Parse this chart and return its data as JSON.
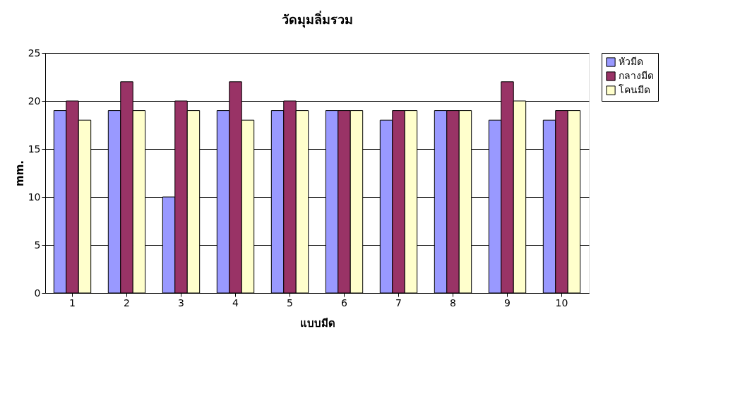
{
  "chart_data": {
    "type": "bar",
    "title": "วัดมุมลิ่มรวม",
    "xlabel": "แบบมีด",
    "ylabel": "mm.",
    "categories": [
      "1",
      "2",
      "3",
      "4",
      "5",
      "6",
      "7",
      "8",
      "9",
      "10"
    ],
    "series": [
      {
        "name": "หัวมีด",
        "color": "#9999ff",
        "values": [
          19,
          19,
          10,
          19,
          19,
          19,
          18,
          19,
          18,
          18
        ]
      },
      {
        "name": "กลางมีด",
        "color": "#993366",
        "values": [
          20,
          22,
          20,
          22,
          20,
          19,
          19,
          19,
          22,
          19
        ]
      },
      {
        "name": "โคนมีด",
        "color": "#ffffcc",
        "values": [
          18,
          19,
          19,
          18,
          19,
          19,
          19,
          19,
          20,
          19
        ]
      }
    ],
    "ylim": [
      0,
      25
    ],
    "yticks": [
      0,
      5,
      10,
      15,
      20,
      25
    ],
    "grid": "y",
    "legend": "right"
  }
}
